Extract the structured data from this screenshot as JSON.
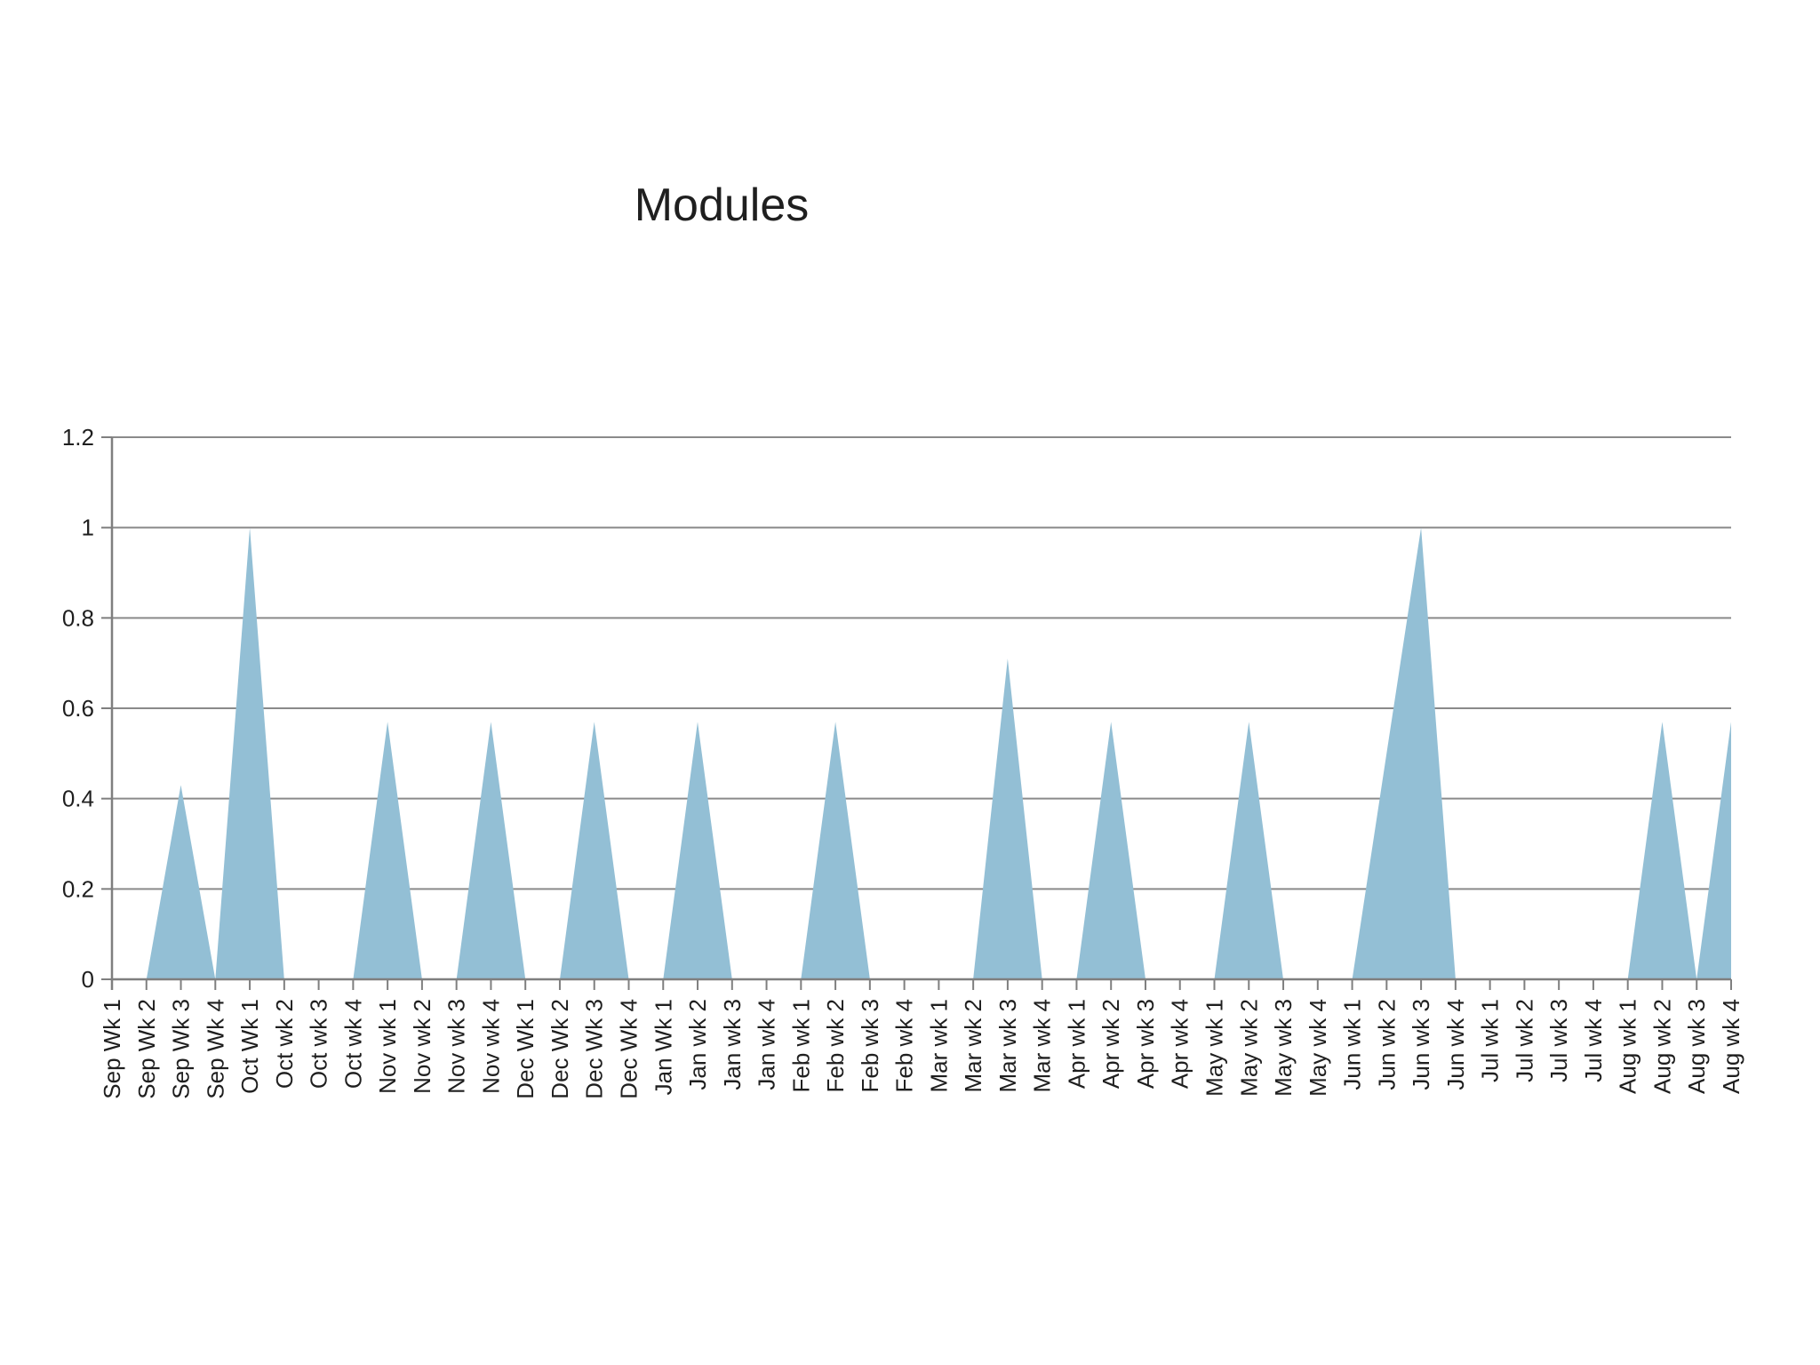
{
  "page": {
    "background": "#ffffff"
  },
  "chart_data": {
    "type": "area",
    "title": "Modules",
    "xlabel": "",
    "ylabel": "",
    "categories": [
      "Sep Wk 1",
      "Sep Wk 2",
      "Sep Wk 3",
      "Sep Wk 4",
      "Oct Wk 1",
      "Oct wk 2",
      "Oct wk 3",
      "Oct wk 4",
      "Nov wk 1",
      "Nov wk 2",
      "Nov wk 3",
      "Nov wk 4",
      "Dec Wk 1",
      "Dec Wk 2",
      "Dec Wk 3",
      "Dec Wk 4",
      "Jan Wk 1",
      "Jan wk 2",
      "Jan wk 3",
      "Jan wk 4",
      "Feb wk 1",
      "Feb wk 2",
      "Feb wk 3",
      "Feb wk 4",
      "Mar wk 1",
      "Mar wk 2",
      "Mar wk 3",
      "Mar wk 4",
      "Apr wk 1",
      "Apr wk 2",
      "Apr wk 3",
      "Apr wk 4",
      "May wk 1",
      "May wk 2",
      "May wk 3",
      "May wk 4",
      "Jun wk 1",
      "Jun wk 2",
      "Jun wk 3",
      "Jun wk 4",
      "Jul wk 1",
      "Jul wk 2",
      "Jul wk 3",
      "Jul wk 4",
      "Aug wk 1",
      "Aug wk 2",
      "Aug wk 3",
      "Aug wk 4"
    ],
    "values": [
      0,
      0,
      0.43,
      0,
      1,
      0,
      0,
      0,
      0.57,
      0,
      0,
      0.57,
      0,
      0,
      0.57,
      0,
      0,
      0.57,
      0,
      0,
      0,
      0.57,
      0,
      0,
      0,
      0,
      0.71,
      0,
      0,
      0.57,
      0,
      0,
      0,
      0.57,
      0,
      0,
      0,
      0.5,
      1,
      0,
      0,
      0,
      0,
      0,
      0,
      0.57,
      0,
      0.57
    ],
    "ylim": [
      0,
      1.2
    ],
    "ytick_values": [
      0,
      0.2,
      0.4,
      0.6,
      0.8,
      1,
      1.2
    ],
    "ytick_labels": [
      "0",
      "0.2",
      "0.4",
      "0.6",
      "0.8",
      "1",
      "1.2"
    ],
    "grid": true,
    "legend": "none",
    "x_labels_rotated_degrees": 90,
    "colors": {
      "area_fill": "#93bfd5",
      "gridline": "#8a8a8a",
      "axis": "#7f7f7f",
      "text": "#1f1f1f",
      "background": "#ffffff"
    }
  }
}
